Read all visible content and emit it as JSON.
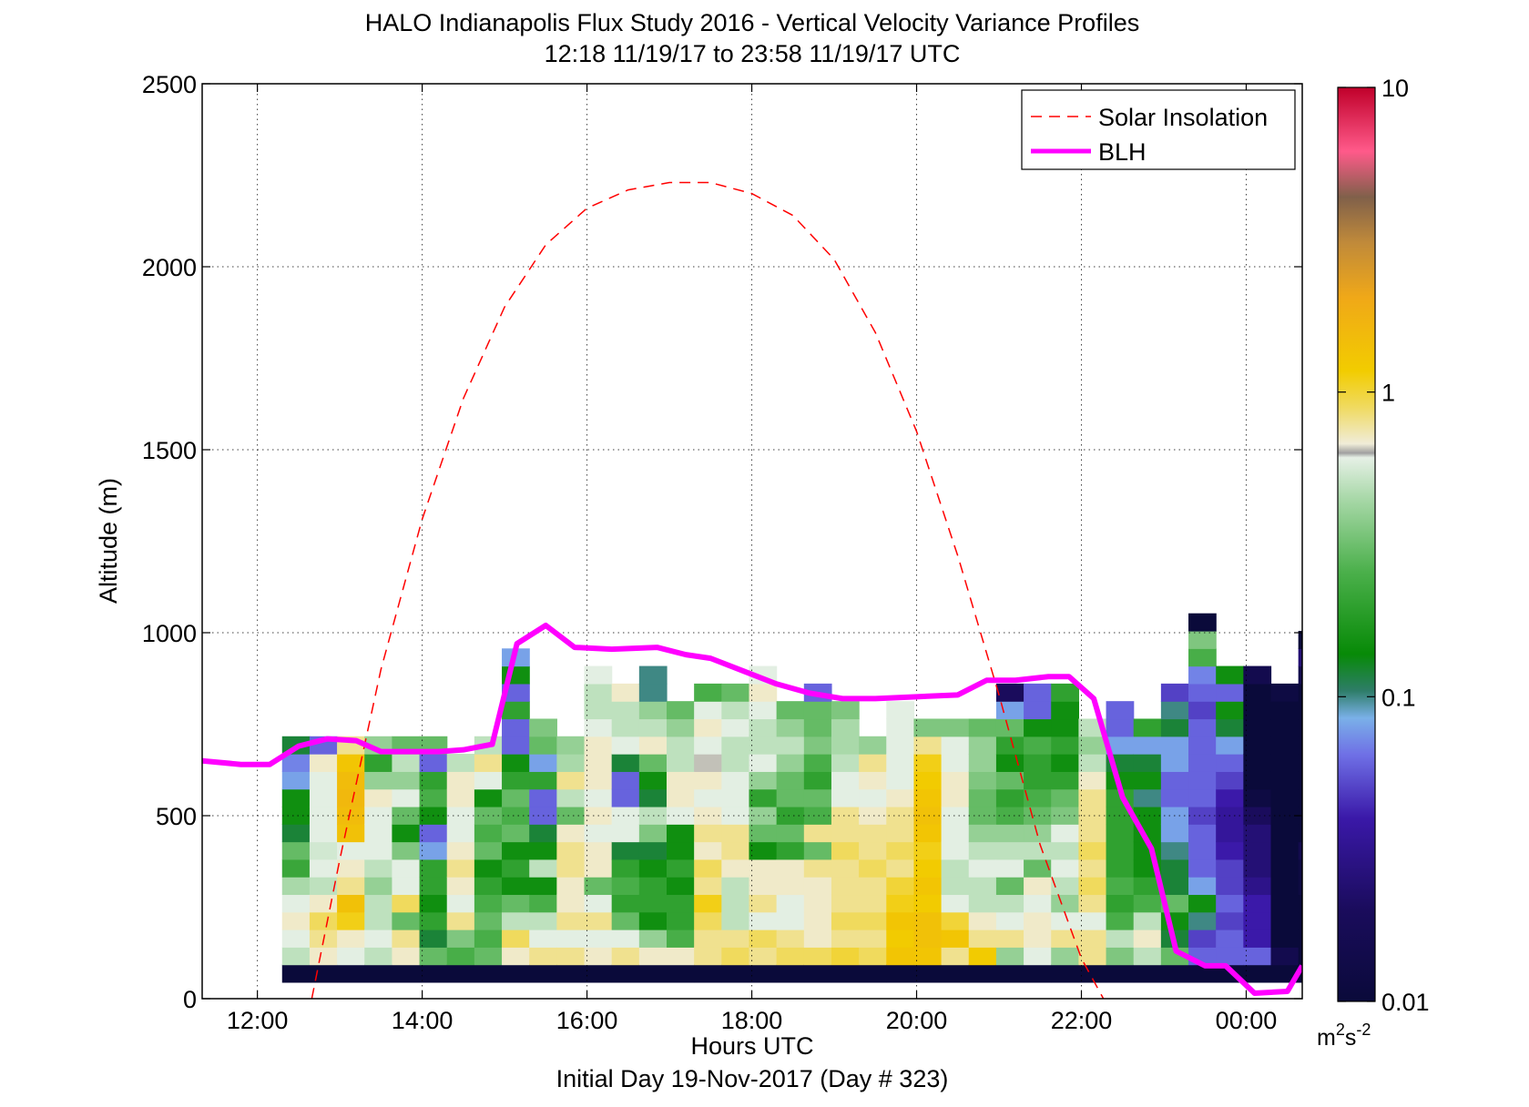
{
  "chart_data": {
    "type": "heatmap",
    "title": "HALO Indianapolis Flux Study 2016 - Vertical Velocity Variance Profiles",
    "subtitle": "12:18 11/19/17 to 23:58 11/19/17  UTC",
    "xlabel": "Hours UTC",
    "xlabel2": "Initial Day 19-Nov-2017 (Day # 323)",
    "ylabel": "Altitude (m)",
    "xlim": [
      11.33,
      24.68
    ],
    "ylim": [
      0,
      2500
    ],
    "x_ticks": [
      12,
      14,
      16,
      18,
      20,
      22,
      24
    ],
    "x_tick_labels": [
      "12:00",
      "14:00",
      "16:00",
      "18:00",
      "20:00",
      "22:00",
      "00:00"
    ],
    "y_ticks": [
      0,
      500,
      1000,
      1500,
      2000,
      2500
    ],
    "y_tick_labels": [
      "0",
      "500",
      "1000",
      "1500",
      "2000",
      "2500"
    ],
    "grid": true,
    "legend_position": "top-right",
    "colorbar": {
      "scale": "log",
      "range": [
        0.01,
        10
      ],
      "tick_labels": [
        "0.01",
        "0.1",
        "1",
        "10"
      ],
      "units_base": "m",
      "units_sup1": "2",
      "units_mid": "s",
      "units_sup2": "-2"
    },
    "heatmap": {
      "time_start": 12.3,
      "time_step": 0.3333,
      "alt_start": 45,
      "alt_step": 48,
      "columns": [
        [
          0.01,
          0.5,
          0.6,
          0.7,
          0.6,
          0.45,
          0.22,
          0.3,
          0.12,
          0.15,
          0.15,
          0.08,
          0.07,
          0.12
        ],
        [
          0.01,
          0.7,
          0.8,
          0.9,
          0.7,
          0.5,
          0.6,
          0.55,
          0.6,
          0.6,
          0.6,
          0.6,
          0.7,
          0.06
        ],
        [
          0.01,
          0.6,
          0.7,
          1.1,
          1.4,
          0.8,
          0.7,
          0.6,
          1.4,
          1.5,
          1.6,
          1.5,
          1.3,
          0.8
        ],
        [
          0.01,
          0.5,
          0.6,
          0.5,
          0.5,
          0.4,
          0.5,
          0.6,
          0.6,
          0.6,
          0.7,
          0.4,
          0.2,
          0.4
        ],
        [
          0.01,
          0.7,
          0.8,
          0.3,
          0.9,
          0.6,
          0.6,
          0.35,
          0.15,
          0.3,
          0.6,
          0.4,
          0.5,
          0.3
        ],
        [
          0.01,
          0.3,
          0.12,
          0.2,
          0.15,
          0.2,
          0.2,
          0.08,
          0.06,
          0.15,
          0.25,
          0.2,
          0.06,
          0.3
        ],
        [
          0.01,
          0.25,
          0.35,
          0.8,
          0.6,
          0.7,
          0.8,
          0.7,
          0.6,
          0.6,
          0.7,
          0.7,
          0.5
        ],
        [
          0.01,
          0.3,
          0.25,
          0.3,
          0.25,
          0.2,
          0.15,
          0.3,
          0.25,
          0.3,
          0.15,
          0.6,
          0.8,
          0.5
        ],
        [
          0.01,
          0.7,
          0.9,
          0.5,
          0.3,
          0.15,
          0.2,
          0.15,
          0.3,
          0.25,
          0.3,
          0.2,
          0.15,
          0.06,
          0.06,
          0.2,
          0.06,
          0.15,
          0.08
        ],
        [
          0.01,
          0.8,
          0.6,
          0.5,
          0.25,
          0.15,
          0.5,
          0.15,
          0.12,
          0.06,
          0.06,
          0.2,
          0.08,
          0.3,
          0.35
        ],
        [
          0.01,
          0.8,
          0.6,
          0.8,
          0.7,
          0.7,
          0.8,
          0.8,
          0.7,
          0.3,
          0.5,
          0.8,
          0.45,
          0.4
        ],
        [
          0.01,
          0.7,
          0.6,
          0.8,
          0.6,
          0.3,
          0.7,
          0.7,
          0.6,
          0.7,
          0.6,
          0.7,
          0.7,
          0.7,
          0.6,
          0.5,
          0.5,
          0.6
        ],
        [
          0.01,
          0.8,
          0.6,
          0.3,
          0.2,
          0.25,
          0.2,
          0.12,
          0.6,
          0.6,
          0.06,
          0.06,
          0.12,
          0.6,
          0.5,
          0.5,
          0.7
        ],
        [
          0.01,
          0.7,
          0.4,
          0.15,
          0.2,
          0.2,
          0.15,
          0.12,
          0.35,
          0.5,
          0.12,
          0.15,
          0.3,
          0.7,
          0.5,
          0.4,
          0.1,
          0.1
        ],
        [
          0.01,
          0.7,
          0.25,
          0.2,
          0.2,
          0.15,
          0.2,
          0.15,
          0.15,
          0.6,
          0.7,
          0.7,
          0.5,
          0.5,
          0.4,
          0.3
        ],
        [
          0.01,
          0.8,
          0.8,
          0.9,
          1.1,
          0.8,
          0.9,
          0.7,
          0.8,
          0.7,
          0.6,
          0.7,
          0.65,
          0.6,
          0.7,
          0.6,
          0.25
        ],
        [
          0.01,
          0.9,
          0.8,
          0.5,
          0.5,
          0.5,
          0.7,
          0.8,
          0.8,
          0.6,
          0.6,
          0.6,
          0.5,
          0.5,
          0.6,
          0.5,
          0.3
        ],
        [
          0.01,
          0.8,
          0.9,
          0.6,
          0.8,
          0.7,
          0.7,
          0.15,
          0.3,
          0.4,
          0.2,
          0.4,
          0.6,
          0.5,
          0.5,
          0.6,
          0.7,
          0.6
        ],
        [
          0.01,
          0.9,
          0.8,
          0.6,
          0.6,
          0.7,
          0.7,
          0.2,
          0.3,
          0.2,
          0.3,
          0.3,
          0.4,
          0.5,
          0.4,
          0.3
        ],
        [
          0.01,
          0.9,
          0.7,
          0.7,
          0.7,
          0.7,
          0.8,
          0.3,
          0.8,
          0.25,
          0.3,
          0.2,
          0.25,
          0.35,
          0.3,
          0.3,
          0.06
        ],
        [
          0.01,
          1.0,
          0.8,
          0.9,
          0.8,
          0.8,
          0.8,
          0.9,
          0.8,
          0.8,
          0.6,
          0.6,
          0.5,
          0.45,
          0.45,
          0.35
        ],
        [
          0.01,
          0.9,
          0.8,
          0.9,
          0.8,
          0.8,
          0.9,
          0.8,
          0.8,
          0.7,
          0.6,
          0.7,
          0.8,
          0.4
        ],
        [
          0.01,
          1.3,
          1.2,
          1.3,
          1.1,
          1.0,
          0.8,
          0.9,
          0.8,
          0.8,
          0.7,
          0.6,
          0.6,
          0.6,
          0.6,
          0.6
        ],
        [
          0.01,
          1.3,
          1.4,
          1.4,
          1.2,
          1.3,
          1.2,
          1.1,
          1.3,
          1.4,
          1.3,
          1.2,
          1.1,
          0.8,
          0.35
        ],
        [
          0.01,
          0.8,
          1.3,
          1.0,
          0.6,
          0.5,
          0.5,
          0.6,
          0.6,
          0.6,
          0.7,
          0.7,
          0.6,
          0.6,
          0.35
        ],
        [
          0.01,
          1.2,
          0.8,
          0.7,
          0.5,
          0.5,
          0.6,
          0.5,
          0.4,
          0.3,
          0.3,
          0.35,
          0.4,
          0.4,
          0.3
        ],
        [
          0.01,
          0.4,
          0.8,
          0.6,
          0.5,
          0.3,
          0.6,
          0.5,
          0.4,
          0.25,
          0.2,
          0.3,
          0.15,
          0.2,
          0.3,
          0.08,
          0.02
        ],
        [
          0.01,
          0.6,
          0.7,
          0.7,
          0.6,
          0.7,
          0.3,
          0.5,
          0.4,
          0.3,
          0.25,
          0.2,
          0.2,
          0.25,
          0.15,
          0.06,
          0.06
        ],
        [
          0.01,
          0.4,
          0.8,
          0.6,
          0.4,
          0.5,
          0.6,
          0.5,
          0.6,
          0.35,
          0.3,
          0.2,
          0.15,
          0.2,
          0.15,
          0.15,
          0.2
        ],
        [
          0.01,
          0.8,
          0.8,
          0.6,
          0.8,
          0.9,
          0.8,
          0.9,
          0.8,
          0.8,
          0.8,
          0.7,
          0.5,
          0.4,
          0.5
        ],
        [
          0.01,
          0.35,
          0.5,
          0.25,
          0.2,
          0.25,
          0.2,
          0.2,
          0.2,
          0.2,
          0.2,
          0.15,
          0.12,
          0.08,
          0.06,
          0.06
        ],
        [
          0.01,
          0.5,
          0.7,
          0.5,
          0.25,
          0.2,
          0.15,
          0.15,
          0.15,
          0.15,
          0.1,
          0.15,
          0.12,
          0.08,
          0.2
        ],
        [
          0.01,
          0.3,
          0.12,
          0.15,
          0.3,
          0.12,
          0.12,
          0.1,
          0.08,
          0.08,
          0.06,
          0.06,
          0.08,
          0.08,
          0.12,
          0.1,
          0.05
        ],
        [
          0.01,
          0.06,
          0.05,
          0.1,
          0.15,
          0.08,
          0.06,
          0.06,
          0.06,
          0.05,
          0.06,
          0.06,
          0.06,
          0.06,
          0.06,
          0.05,
          0.06,
          0.07,
          0.25,
          0.35,
          0.01
        ],
        [
          0.01,
          0.06,
          0.06,
          0.05,
          0.06,
          0.05,
          0.05,
          0.04,
          0.035,
          0.035,
          0.04,
          0.05,
          0.06,
          0.08,
          0.12,
          0.15,
          0.06,
          0.15
        ],
        [
          0.01,
          0.06,
          0.04,
          0.04,
          0.04,
          0.03,
          0.025,
          0.025,
          0.025,
          0.02,
          0.012,
          0.01,
          0.01,
          0.01,
          0.01,
          0.01,
          0.01,
          0.015
        ],
        [
          0.01,
          0.015,
          0.01,
          0.01,
          0.01,
          0.01,
          0.01,
          0.01,
          0.01,
          0.01,
          0.01,
          0.01,
          0.01,
          0.01,
          0.01,
          0.01,
          0.012
        ],
        [
          0.01,
          0.01,
          0.01,
          0.01,
          0.01,
          0.012,
          0.012,
          0.015,
          0.01,
          0.01,
          0.01,
          0.01,
          0.01,
          0.01,
          0.01,
          0.01,
          0.01,
          0.015,
          0.025,
          0.01
        ]
      ]
    },
    "series": [
      {
        "name": "Solar Insolation",
        "style": "dashed",
        "color": "#ff0000",
        "x": [
          12.66,
          13.0,
          13.5,
          14.0,
          14.5,
          15.0,
          15.5,
          16.0,
          16.5,
          17.0,
          17.5,
          18.0,
          18.5,
          19.0,
          19.5,
          20.0,
          20.5,
          21.0,
          21.5,
          22.0,
          22.34
        ],
        "y": [
          0,
          380,
          900,
          1310,
          1640,
          1890,
          2060,
          2160,
          2210,
          2230,
          2230,
          2200,
          2140,
          2020,
          1820,
          1550,
          1210,
          830,
          420,
          110,
          -30
        ]
      },
      {
        "name": "BLH",
        "style": "solid",
        "color": "#ff00ff",
        "x": [
          11.33,
          11.8,
          12.15,
          12.5,
          12.85,
          13.2,
          13.5,
          14.2,
          14.5,
          14.85,
          15.15,
          15.5,
          15.85,
          16.3,
          16.85,
          17.2,
          17.5,
          17.9,
          18.3,
          18.7,
          19.1,
          19.5,
          20.0,
          20.5,
          20.85,
          21.2,
          21.6,
          21.85,
          22.15,
          22.5,
          22.85,
          23.15,
          23.5,
          23.75,
          24.1,
          24.5,
          24.68
        ],
        "y": [
          650,
          640,
          640,
          690,
          710,
          705,
          675,
          675,
          680,
          695,
          970,
          1020,
          960,
          955,
          960,
          940,
          930,
          895,
          860,
          835,
          820,
          820,
          825,
          830,
          870,
          870,
          880,
          880,
          820,
          550,
          410,
          130,
          90,
          90,
          15,
          20,
          90
        ]
      }
    ]
  }
}
